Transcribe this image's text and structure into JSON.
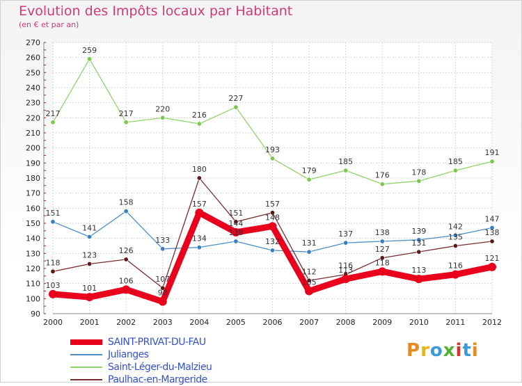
{
  "header": {
    "title": "Evolution des Impôts locaux par Habitant",
    "subtitle": "(en € et par an)"
  },
  "logo": {
    "text": "Proxiti",
    "colors": [
      "#e58a1f",
      "#e5b51f",
      "#3b9bd9",
      "#55b133",
      "#d9342b",
      "#3b9bd9",
      "#e58a1f"
    ]
  },
  "chart_data": {
    "type": "line",
    "title": "Evolution des Impôts locaux par Habitant",
    "subtitle": "(en € et par an)",
    "categories": [
      "2000",
      "2001",
      "2002",
      "2003",
      "2004",
      "2005",
      "2006",
      "2007",
      "2008",
      "2009",
      "2010",
      "2011",
      "2012"
    ],
    "ylim": [
      90,
      270
    ],
    "yticks": [
      90,
      100,
      110,
      120,
      130,
      140,
      150,
      160,
      170,
      180,
      190,
      200,
      210,
      220,
      230,
      240,
      250,
      260,
      270
    ],
    "grid": true,
    "legend_position": "bottom-left",
    "series": [
      {
        "name": "SAINT-PRIVAT-DU-FAU",
        "color": "#e8001c",
        "values": [
          103,
          101,
          106,
          98,
          157,
          144,
          148,
          105,
          113,
          118,
          113,
          116,
          121
        ]
      },
      {
        "name": "Julianges",
        "color": "#4a8ec6",
        "values": [
          151,
          141,
          158,
          133,
          134,
          138,
          132,
          131,
          137,
          138,
          139,
          142,
          147
        ]
      },
      {
        "name": "Saint-Léger-du-Malzieu",
        "color": "#8fd36a",
        "values": [
          217,
          259,
          217,
          220,
          216,
          227,
          193,
          179,
          185,
          176,
          178,
          185,
          191
        ]
      },
      {
        "name": "Paulhac-en-Margeride",
        "color": "#7a2b2b",
        "values": [
          118,
          123,
          126,
          107,
          180,
          151,
          157,
          112,
          116,
          127,
          131,
          135,
          138
        ]
      }
    ]
  }
}
